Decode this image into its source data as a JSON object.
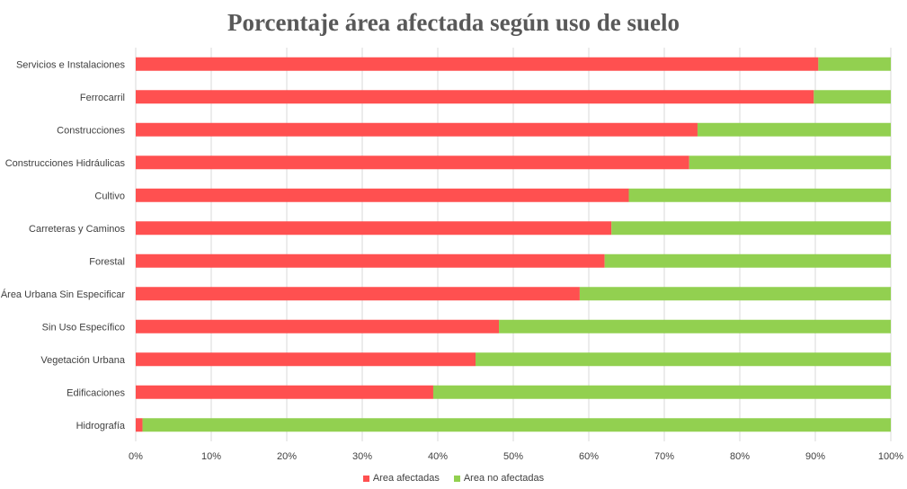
{
  "chart_data": {
    "type": "bar",
    "orientation": "horizontal",
    "stacked": true,
    "title": "Porcentaje área afectada según uso de suelo",
    "categories": [
      "Servicios e Instalaciones",
      "Ferrocarril",
      "Construcciones",
      "Construcciones Hidráulicas",
      "Cultivo",
      "Carreteras y Caminos",
      "Forestal",
      "Área Urbana Sin Especificar",
      "Sin Uso Específico",
      "Vegetación Urbana",
      "Edificaciones",
      "Hidrografía"
    ],
    "series": [
      {
        "name": "Area afectadas",
        "color": "#ff5050",
        "values": [
          90.4,
          89.8,
          74.4,
          73.3,
          65.3,
          63.0,
          62.1,
          58.8,
          48.1,
          45.0,
          39.4,
          0.9
        ]
      },
      {
        "name": "Area no afectadas",
        "color": "#92d050",
        "values": [
          9.6,
          10.2,
          25.6,
          26.7,
          34.7,
          37.0,
          37.9,
          41.2,
          51.9,
          55.0,
          60.6,
          99.1
        ]
      }
    ],
    "x_ticks": [
      "0%",
      "10%",
      "20%",
      "30%",
      "40%",
      "50%",
      "60%",
      "70%",
      "80%",
      "90%",
      "100%"
    ],
    "xlim": [
      0,
      100
    ],
    "gridlines": true,
    "legend_position": "bottom"
  }
}
